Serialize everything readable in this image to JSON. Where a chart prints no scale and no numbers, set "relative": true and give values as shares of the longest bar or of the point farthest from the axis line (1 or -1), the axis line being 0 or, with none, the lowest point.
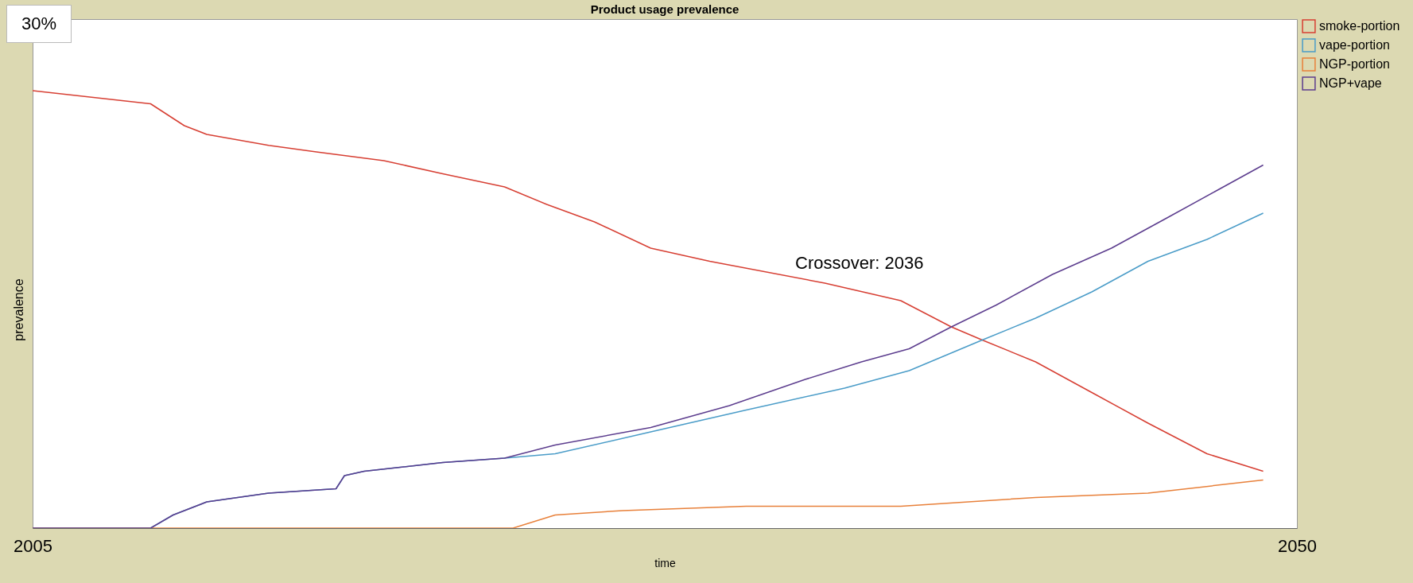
{
  "chart_data": {
    "type": "line",
    "title": "Product usage prevalence",
    "xlabel": "time",
    "ylabel": "prevalence",
    "relative": true,
    "xlim": [
      2005,
      2050
    ],
    "xticks": [
      2005,
      2050
    ],
    "legend": "top right",
    "annotations": [
      "30%",
      "Crossover: 2036"
    ],
    "series": [
      {
        "name": "smoke-portion",
        "color": "#d73f33",
        "x": [
          2005,
          2009.2,
          2010.4,
          2011.2,
          2013.4,
          2015.1,
          2017.5,
          2019.6,
          2021.8,
          2023.3,
          2025,
          2027,
          2029.1,
          2033.2,
          2035.9,
          2037.7,
          2038.8,
          2040.7,
          2042.7,
          2044.7,
          2046.8,
          2048.8
        ],
        "values": [
          1,
          0.97,
          0.92,
          0.9,
          0.875,
          0.86,
          0.84,
          0.81,
          0.78,
          0.74,
          0.7,
          0.64,
          0.61,
          0.56,
          0.52,
          0.46,
          0.43,
          0.38,
          0.31,
          0.24,
          0.17,
          0.13
        ]
      },
      {
        "name": "vape-portion",
        "color": "#4a9cc8",
        "x": [
          2005,
          2009.2,
          2010,
          2011.2,
          2013.4,
          2015.8,
          2016.1,
          2016.8,
          2019.6,
          2021.8,
          2023.6,
          2027,
          2030.4,
          2033.9,
          2036.2,
          2038.8,
          2040.7,
          2042.7,
          2044.7,
          2046.8,
          2048.8
        ],
        "values": [
          0,
          0,
          0.03,
          0.06,
          0.08,
          0.09,
          0.12,
          0.13,
          0.15,
          0.16,
          0.17,
          0.22,
          0.27,
          0.32,
          0.36,
          0.43,
          0.48,
          0.54,
          0.61,
          0.66,
          0.72
        ]
      },
      {
        "name": "NGP-portion",
        "color": "#e8803a",
        "x": [
          2005,
          2022.1,
          2023.6,
          2026,
          2030.4,
          2035.9,
          2040.7,
          2044.7,
          2048.8
        ],
        "values": [
          0,
          0,
          0.03,
          0.04,
          0.05,
          0.05,
          0.07,
          0.08,
          0.11
        ]
      },
      {
        "name": "NGP+vape",
        "color": "#5c3d8e",
        "x": [
          2005,
          2009.2,
          2010,
          2011.2,
          2013.4,
          2015.8,
          2016.1,
          2016.8,
          2019.6,
          2021.8,
          2023.6,
          2027,
          2029.8,
          2032.5,
          2034.5,
          2036.2,
          2037.7,
          2039.3,
          2041.3,
          2043.4,
          2045.4,
          2047.1,
          2048.8
        ],
        "values": [
          0,
          0,
          0.03,
          0.06,
          0.08,
          0.09,
          0.12,
          0.13,
          0.15,
          0.16,
          0.19,
          0.23,
          0.28,
          0.34,
          0.38,
          0.41,
          0.46,
          0.51,
          0.58,
          0.64,
          0.71,
          0.77,
          0.83
        ]
      }
    ]
  }
}
